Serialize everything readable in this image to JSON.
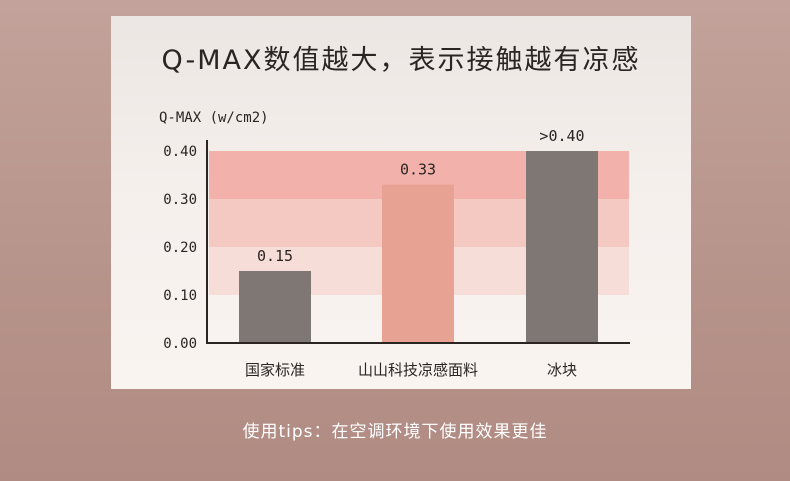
{
  "title": "Q-MAX数值越大，表示接触越有凉感",
  "tips": "使用tips：在空调环境下使用效果更佳",
  "colors": {
    "gray_bar": "#7e7774",
    "pink_bar": "#e8a294",
    "band_strong": "#f2b2ab",
    "band_mid": "#f4c9c2",
    "band_light": "#f7ddd8",
    "axis": "#2a2522"
  },
  "chart_data": {
    "type": "bar",
    "ylabel": "Q-MAX (w/cm2)",
    "xlabel": "",
    "ylim": [
      0,
      0.4
    ],
    "y_ticks": [
      "0.00",
      "0.10",
      "0.20",
      "0.30",
      "0.40"
    ],
    "categories": [
      "国家标准",
      "山山科技凉感面料",
      "冰块"
    ],
    "values": [
      0.15,
      0.33,
      0.4
    ],
    "value_labels": [
      "0.15",
      "0.33",
      ">0.40"
    ],
    "bar_colors": [
      "gray",
      "pink",
      "gray"
    ],
    "grid": false,
    "legend": "none"
  }
}
